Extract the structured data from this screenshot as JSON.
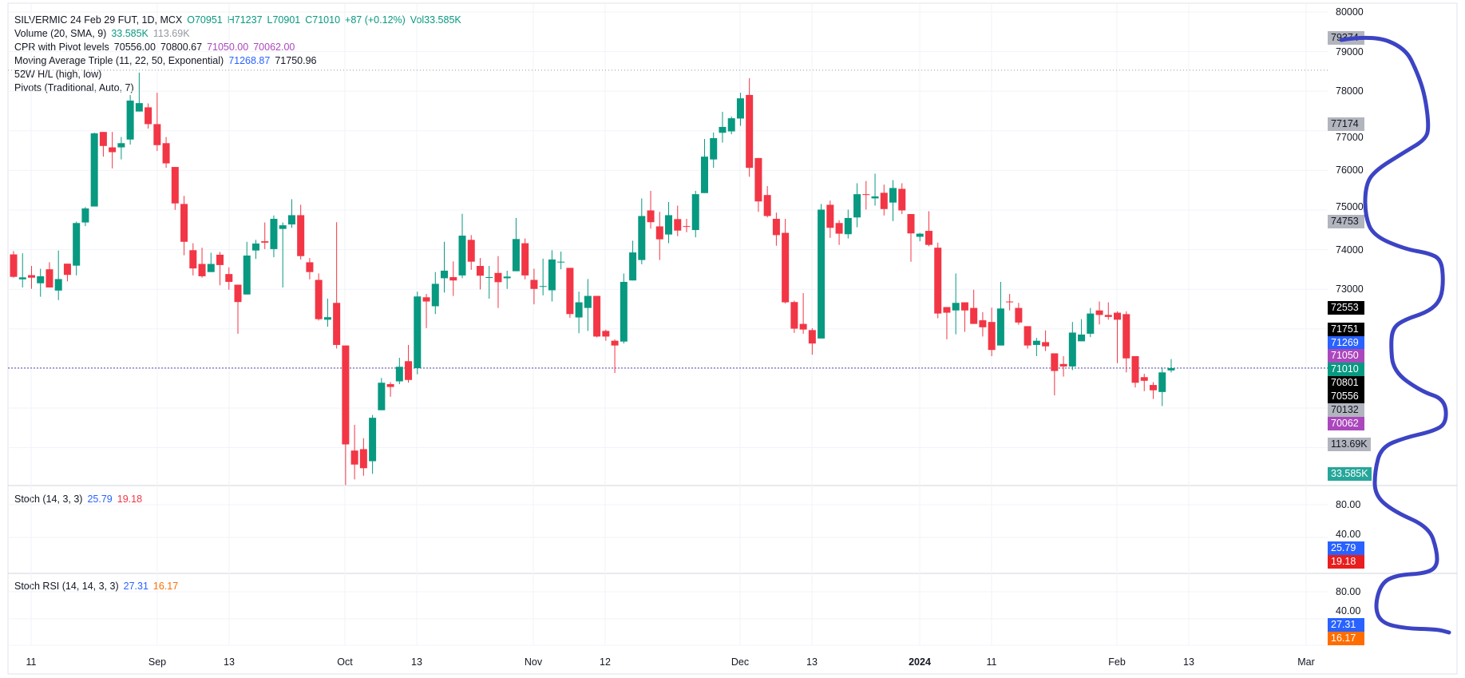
{
  "legend": {
    "symbol": "SILVERMIC 24 Feb 29 FUT, 1D, MCX",
    "open": "O70951",
    "high": "H71237",
    "low": "L70901",
    "close": "C71010",
    "change": "+87 (+0.12%)",
    "volume": "Vol33.585K",
    "volume_ind": {
      "label": "Volume (20, SMA, 9)",
      "v1": "33.585K",
      "v2": "113.69K"
    },
    "cpr": {
      "label": "CPR with Pivot levels",
      "v1": "70556.00",
      "v2": "70800.67",
      "v3": "71050.00",
      "v4": "70062.00"
    },
    "ma": {
      "label": "Moving Average Triple (11, 22, 50, Exponential)",
      "v1": "71268.87",
      "v2": "71750.96"
    },
    "w52": {
      "label": "52W H/L (high, low)"
    },
    "pivots": {
      "label": "Pivots (Traditional, Auto, 7)"
    },
    "stoch": {
      "label": "Stoch (14, 3, 3)",
      "k": "25.79",
      "d": "19.18"
    },
    "stochrsi": {
      "label": "Stoch RSI (14, 14, 3, 3)",
      "k": "27.31",
      "d": "16.17"
    }
  },
  "price_axis": [
    "80000",
    "79000",
    "78000",
    "77000",
    "76000",
    "75000",
    "74000",
    "73000"
  ],
  "stoch_axis": [
    "80.00",
    "40.00"
  ],
  "stochrsi_axis": [
    "80.00",
    "40.00"
  ],
  "time_axis": [
    "11",
    "Sep",
    "13",
    "Oct",
    "13",
    "Nov",
    "12",
    "Dec",
    "13",
    "2024",
    "11",
    "Feb",
    "13",
    "Mar"
  ],
  "badges": [
    {
      "text": "79374",
      "bg": "#b2b5be",
      "fg": "#131722"
    },
    {
      "text": "77174",
      "bg": "#b2b5be",
      "fg": "#131722"
    },
    {
      "text": "74753",
      "bg": "#b2b5be",
      "fg": "#131722"
    },
    {
      "text": "72553",
      "bg": "#000000",
      "fg": "#ffffff"
    },
    {
      "text": "71751",
      "bg": "#000000",
      "fg": "#ffffff"
    },
    {
      "text": "71269",
      "bg": "#2962ff",
      "fg": "#ffffff"
    },
    {
      "text": "71050",
      "bg": "#ab47bc",
      "fg": "#ffffff"
    },
    {
      "text": "71010",
      "bg": "#089981",
      "fg": "#ffffff"
    },
    {
      "text": "70801",
      "bg": "#000000",
      "fg": "#ffffff"
    },
    {
      "text": "70556",
      "bg": "#000000",
      "fg": "#ffffff"
    },
    {
      "text": "70132",
      "bg": "#b2b5be",
      "fg": "#131722"
    },
    {
      "text": "70062",
      "bg": "#ab47bc",
      "fg": "#ffffff"
    },
    {
      "text": "113.69K",
      "bg": "#b2b5be",
      "fg": "#131722"
    },
    {
      "text": "33.585K",
      "bg": "#26a69a",
      "fg": "#ffffff"
    },
    {
      "text": "25.79",
      "bg": "#2962ff",
      "fg": "#ffffff"
    },
    {
      "text": "19.18",
      "bg": "#e91e1e",
      "fg": "#ffffff"
    },
    {
      "text": "27.31",
      "bg": "#2962ff",
      "fg": "#ffffff"
    },
    {
      "text": "16.17",
      "bg": "#ff6d00",
      "fg": "#ffffff"
    }
  ],
  "colors": {
    "up": "#089981",
    "down": "#f23645",
    "annotation": "#3c44c4",
    "last_price_line": "#5b4aa8"
  },
  "chart_data": {
    "type": "candlestick",
    "symbol": "SILVERMIC 24 Feb 29 FUT",
    "interval": "1D",
    "ylim": [
      68000,
      80000
    ],
    "last_price": 71010,
    "high_52w_line": 78530,
    "ohlc": [
      [
        73880,
        73964,
        73292,
        73313
      ],
      [
        73250,
        73908,
        73045,
        73300
      ],
      [
        73356,
        73590,
        73010,
        73292
      ],
      [
        73151,
        73518,
        72811,
        73328
      ],
      [
        73504,
        73682,
        73045,
        73045
      ],
      [
        72967,
        73978,
        72726,
        73257
      ],
      [
        73646,
        73646,
        73200,
        73363
      ],
      [
        73596,
        74707,
        73349,
        74672
      ],
      [
        74686,
        75075,
        74594,
        75040
      ],
      [
        75089,
        76957,
        75089,
        76935
      ],
      [
        76971,
        76971,
        76348,
        76617
      ],
      [
        76582,
        76971,
        76051,
        76461
      ],
      [
        76582,
        76843,
        76277,
        76688
      ],
      [
        76780,
        77905,
        76652,
        77763
      ],
      [
        77487,
        78470,
        77487,
        77699
      ],
      [
        77593,
        77692,
        77056,
        77169
      ],
      [
        77169,
        77961,
        76490,
        76638
      ],
      [
        76688,
        76843,
        76065,
        76178
      ],
      [
        76087,
        76087,
        75004,
        75167
      ],
      [
        75153,
        75358,
        73858,
        74198
      ],
      [
        73986,
        74162,
        73349,
        73526
      ],
      [
        73639,
        74049,
        73292,
        73328
      ],
      [
        73434,
        73922,
        73434,
        73639
      ],
      [
        73872,
        73943,
        73101,
        73611
      ],
      [
        73384,
        73554,
        72988,
        73186
      ],
      [
        73115,
        73115,
        71877,
        72677
      ],
      [
        72868,
        74198,
        72868,
        73851
      ],
      [
        73978,
        74247,
        73766,
        74155
      ],
      [
        74212,
        74686,
        74014,
        74176
      ],
      [
        74014,
        74863,
        73809,
        74778
      ],
      [
        74523,
        74686,
        73045,
        74615
      ],
      [
        74636,
        75273,
        74551,
        74870
      ],
      [
        74870,
        75132,
        73752,
        73837
      ],
      [
        73681,
        73787,
        73250,
        73434
      ],
      [
        73236,
        73399,
        72210,
        72245
      ],
      [
        72231,
        72762,
        72054,
        72295
      ],
      [
        72656,
        74693,
        71502,
        71594
      ],
      [
        71580,
        71580,
        68057,
        69083
      ],
      [
        68928,
        69578,
        68199,
        68574
      ],
      [
        68963,
        69239,
        68291,
        68482
      ],
      [
        68659,
        69826,
        68340,
        69755
      ],
      [
        69946,
        70760,
        69946,
        70640
      ],
      [
        70604,
        70654,
        70286,
        70533
      ],
      [
        70675,
        71269,
        70604,
        71043
      ],
      [
        71184,
        71594,
        70640,
        70710
      ],
      [
        71008,
        72939,
        70852,
        72818
      ],
      [
        72797,
        72882,
        72019,
        72691
      ],
      [
        72571,
        73434,
        72373,
        73137
      ],
      [
        73278,
        74198,
        72917,
        73469
      ],
      [
        73306,
        73703,
        72832,
        73222
      ],
      [
        73349,
        74905,
        73278,
        74353
      ],
      [
        74247,
        74368,
        73491,
        73696
      ],
      [
        73589,
        73787,
        72995,
        73342
      ],
      [
        73292,
        73589,
        72762,
        73306
      ],
      [
        73412,
        73837,
        72528,
        73179
      ],
      [
        73278,
        73469,
        73009,
        73320
      ],
      [
        73455,
        74799,
        73455,
        74268
      ],
      [
        74162,
        74283,
        73250,
        73349
      ],
      [
        73236,
        73518,
        72620,
        73009
      ],
      [
        73066,
        73773,
        72846,
        73080
      ],
      [
        72974,
        73985,
        72691,
        73752
      ],
      [
        73681,
        73950,
        73505,
        73696
      ],
      [
        73540,
        73540,
        72281,
        72373
      ],
      [
        72288,
        72939,
        71891,
        72670
      ],
      [
        72528,
        73257,
        71948,
        72832
      ],
      [
        72832,
        72832,
        71785,
        71806
      ],
      [
        71948,
        71983,
        71700,
        71806
      ],
      [
        71700,
        71736,
        70887,
        71580
      ],
      [
        71679,
        73398,
        71630,
        73186
      ],
      [
        73222,
        74226,
        73222,
        73929
      ],
      [
        73738,
        75294,
        73632,
        74849
      ],
      [
        74990,
        75485,
        74530,
        74693
      ],
      [
        74587,
        74955,
        73738,
        74261
      ],
      [
        74382,
        75202,
        74162,
        74870
      ],
      [
        74771,
        75111,
        74339,
        74481
      ],
      [
        74594,
        74778,
        74438,
        74580
      ],
      [
        74495,
        75485,
        74311,
        75400
      ],
      [
        75428,
        76794,
        75428,
        76348
      ],
      [
        76277,
        76957,
        76065,
        76815
      ],
      [
        76950,
        77480,
        76702,
        77098
      ],
      [
        76985,
        77360,
        76914,
        77317
      ],
      [
        77310,
        77961,
        77126,
        77820
      ],
      [
        77905,
        78329,
        75839,
        76065
      ],
      [
        76313,
        76313,
        74955,
        75217
      ],
      [
        75379,
        75605,
        74813,
        74849
      ],
      [
        74778,
        74934,
        74099,
        74367
      ],
      [
        74424,
        74778,
        72641,
        72670
      ],
      [
        72677,
        72712,
        71899,
        72005
      ],
      [
        72125,
        72903,
        71877,
        71983
      ],
      [
        71969,
        72019,
        71347,
        71630
      ],
      [
        71757,
        75153,
        71757,
        75011
      ],
      [
        75132,
        75238,
        74297,
        74551
      ],
      [
        74672,
        74742,
        74120,
        74403
      ],
      [
        74389,
        75011,
        74283,
        74799
      ],
      [
        74813,
        75676,
        74565,
        75400
      ],
      [
        75400,
        75733,
        75011,
        75379
      ],
      [
        75294,
        75917,
        75110,
        75344
      ],
      [
        75435,
        75641,
        74863,
        75025
      ],
      [
        75188,
        75754,
        74721,
        75556
      ],
      [
        75535,
        75676,
        74898,
        74990
      ],
      [
        74898,
        74898,
        73695,
        74410
      ],
      [
        74325,
        74424,
        74212,
        74403
      ],
      [
        74474,
        74969,
        74085,
        74120
      ],
      [
        74049,
        74176,
        72267,
        72387
      ],
      [
        72550,
        72550,
        71736,
        72408
      ],
      [
        72465,
        73398,
        71863,
        72656
      ],
      [
        72670,
        72670,
        71926,
        72465
      ],
      [
        72528,
        72988,
        72125,
        72125
      ],
      [
        72217,
        72422,
        71807,
        72040
      ],
      [
        72174,
        72535,
        71311,
        71467
      ],
      [
        71580,
        73186,
        71580,
        72514
      ],
      [
        72691,
        72882,
        72465,
        72670
      ],
      [
        72528,
        72656,
        72104,
        72160
      ],
      [
        72068,
        72068,
        71502,
        71580
      ],
      [
        71594,
        71771,
        71311,
        71700
      ],
      [
        71665,
        71962,
        71439,
        71559
      ],
      [
        71382,
        71382,
        70321,
        70937
      ],
      [
        71113,
        71311,
        70795,
        71050
      ],
      [
        71050,
        72174,
        70958,
        71906
      ],
      [
        71686,
        72245,
        71686,
        71856
      ],
      [
        71877,
        72528,
        71792,
        72387
      ],
      [
        72465,
        72691,
        72111,
        72351
      ],
      [
        72351,
        72670,
        72231,
        72302
      ],
      [
        72408,
        72443,
        71135,
        72231
      ],
      [
        72372,
        72443,
        70901,
        71255
      ],
      [
        71311,
        71311,
        70519,
        70639
      ],
      [
        70781,
        70866,
        70427,
        70689
      ],
      [
        70583,
        70654,
        70229,
        70449
      ],
      [
        70406,
        71028,
        70052,
        70901
      ],
      [
        70951,
        71237,
        70901,
        71010
      ]
    ]
  }
}
